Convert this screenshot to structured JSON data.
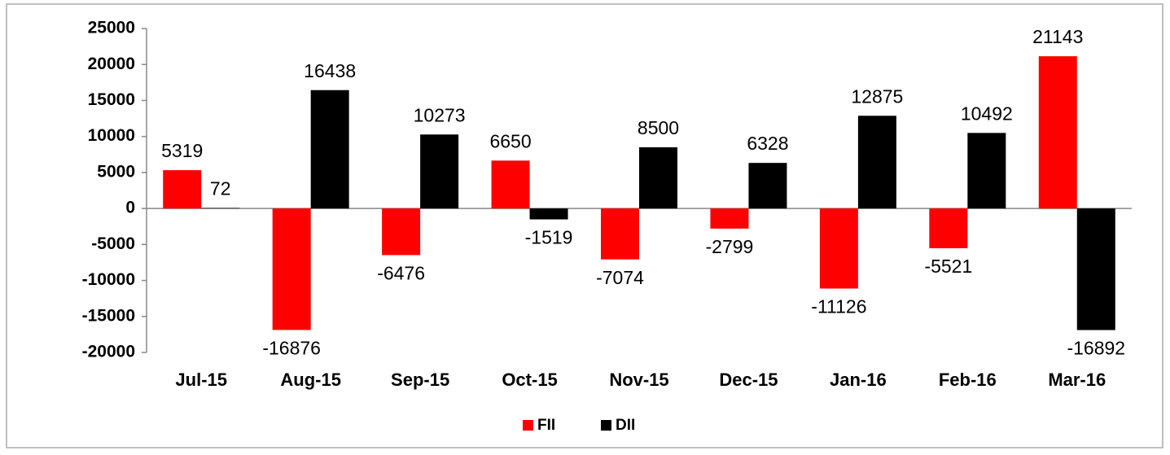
{
  "chart_data": {
    "type": "bar",
    "categories": [
      "Jul-15",
      "Aug-15",
      "Sep-15",
      "Oct-15",
      "Nov-15",
      "Dec-15",
      "Jan-16",
      "Feb-16",
      "Mar-16"
    ],
    "series": [
      {
        "name": "FII",
        "color": "#ff0000",
        "values": [
          5319,
          -16876,
          -6476,
          6650,
          -7074,
          -2799,
          -11126,
          -5521,
          21143
        ]
      },
      {
        "name": "DII",
        "color": "#000000",
        "values": [
          72,
          16438,
          10273,
          -1519,
          8500,
          6328,
          12875,
          10492,
          -16892
        ]
      }
    ],
    "ylim": [
      -20000,
      25000
    ],
    "yticks": [
      -20000,
      -15000,
      -10000,
      -5000,
      0,
      5000,
      10000,
      15000,
      20000,
      25000
    ],
    "grid": false,
    "legend": "bottom"
  }
}
